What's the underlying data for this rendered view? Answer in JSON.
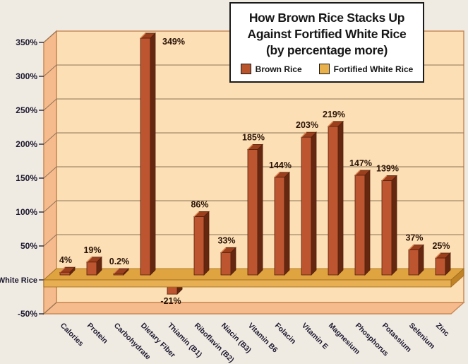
{
  "chart_data": {
    "type": "bar",
    "title": "How Brown Rice Stacks Up Against Fortified White Rice (by percentage more)",
    "title_lines": [
      "How Brown Rice Stacks Up",
      "Against Fortified White Rice",
      "(by percentage more)"
    ],
    "legend": [
      {
        "label": "Brown Rice",
        "color": "#b9542c"
      },
      {
        "label": "Fortified White Rice",
        "color": "#e9b14c"
      }
    ],
    "legend_position": "inside-title-box-top-right",
    "categories": [
      "Calories",
      "Protein",
      "Carbohydrate",
      "Dietary Fiber",
      "Thiamin (B1)",
      "Riboflavin (B2)",
      "Niacin (B3)",
      "Vitamin B6",
      "Folacin",
      "Vitamin E",
      "Magnesium",
      "Phosphorus",
      "Potassium",
      "Selenium",
      "Zinc"
    ],
    "series": [
      {
        "name": "Brown Rice",
        "values": [
          4,
          19,
          0.2,
          349,
          -21,
          86,
          33,
          185,
          144,
          203,
          219,
          147,
          139,
          37,
          25
        ]
      }
    ],
    "value_labels": [
      "4%",
      "19%",
      "0.2%",
      "349%",
      "-21%",
      "86%",
      "33%",
      "185%",
      "144%",
      "203%",
      "219%",
      "147%",
      "139%",
      "37%",
      "25%"
    ],
    "y_ticks": {
      "labels": [
        "350%",
        "300%",
        "250%",
        "200%",
        "150%",
        "100%",
        "50%",
        "White Rice",
        "-50%"
      ],
      "values": [
        350,
        300,
        250,
        200,
        150,
        100,
        50,
        0,
        -50
      ]
    },
    "baseline_label": "White Rice",
    "ylim": [
      -50,
      350
    ],
    "grid": true,
    "colors": {
      "background": "#f0ebe2",
      "plot_bg": "#fcdfb5",
      "wall": "#f6bb8d",
      "wall_edge": "#c98a58",
      "grid": "#8d7458",
      "band_top": "#dfa440",
      "band_front": "#e7af52",
      "band_cut": "#c08326",
      "band_edge": "#9c6a1d",
      "bar_front": "#bd5630",
      "bar_side": "#662711",
      "bar_top": "#9c3f1c",
      "bar_highlight": "#df8953",
      "bar_outline": "#53200c",
      "axis_text": "#1c1830",
      "value_text": "#2a1306",
      "title_text": "#161616",
      "box_border": "#1a1a1a"
    }
  }
}
